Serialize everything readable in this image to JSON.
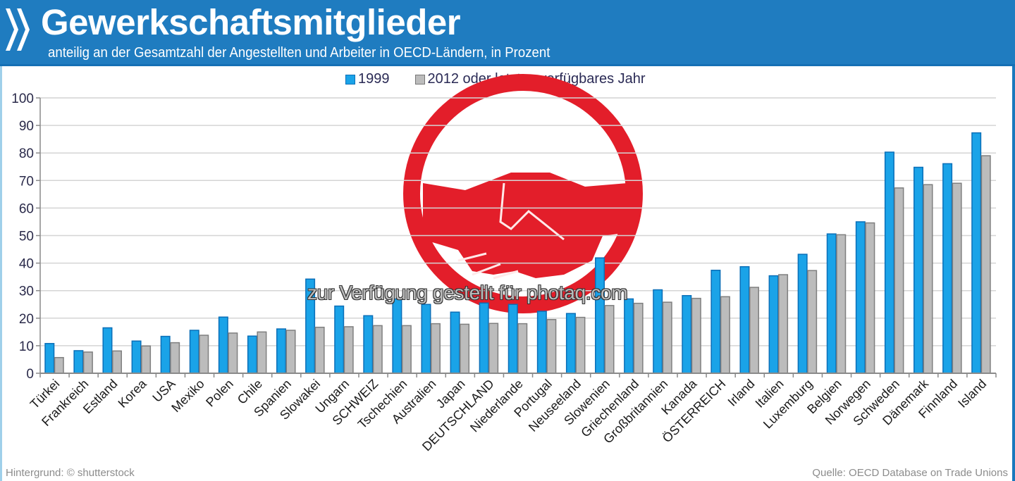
{
  "header": {
    "title": "Gewerkschaftsmitglieder",
    "subtitle": "anteilig an der Gesamtzahl der Angestellten und Arbeiter in OECD-Ländern, in Prozent",
    "logo_icon": "oecd-chevrons-icon"
  },
  "footer": {
    "left": "Hintergrund: © shutterstock",
    "right": "Quelle: OECD  Database on Trade Unions"
  },
  "watermark": {
    "text": "zur Verfügung gestellt für photaq.com",
    "icon": "handshake-icon"
  },
  "colors": {
    "header_bg": "#1f7cc0",
    "series_1999": "#1aa3e8",
    "series_2012": "#bcbcbc",
    "handshake": "#e31e2a"
  },
  "chart_data": {
    "type": "bar",
    "title": "Gewerkschaftsmitglieder",
    "subtitle": "anteilig an der Gesamtzahl der Angestellten und Arbeiter in OECD-Ländern, in Prozent",
    "xlabel": "",
    "ylabel": "",
    "ylim": [
      0,
      100
    ],
    "yticks": [
      0,
      10,
      20,
      30,
      40,
      50,
      60,
      70,
      80,
      90,
      100
    ],
    "grid": true,
    "legend_position": "top-center",
    "categories": [
      "Türkei",
      "Frankreich",
      "Estland",
      "Korea",
      "USA",
      "Mexiko",
      "Polen",
      "Chile",
      "Spanien",
      "Slowakei",
      "Ungarn",
      "SCHWEIZ",
      "Tschechien",
      "Australien",
      "Japan",
      "DEUTSCHLAND",
      "Niederlande",
      "Portugal",
      "Neuseeland",
      "Slowenien",
      "Griechenland",
      "Großbritannien",
      "Kanada",
      "ÖSTERREICH",
      "Irland",
      "Italien",
      "Luxemburg",
      "Belgien",
      "Norwegen",
      "Schweden",
      "Dänemark",
      "Finnland",
      "Island"
    ],
    "series": [
      {
        "name": "1999",
        "values": [
          10.8,
          8.2,
          16.5,
          11.7,
          13.4,
          15.6,
          20.4,
          13.5,
          16.1,
          34.2,
          24.4,
          20.9,
          27.0,
          25.0,
          22.2,
          25.5,
          25.0,
          22.5,
          21.7,
          41.9,
          27.0,
          30.3,
          28.2,
          37.4,
          38.7,
          35.4,
          43.2,
          50.6,
          55.0,
          80.3,
          74.8,
          76.1,
          87.3
        ]
      },
      {
        "name": "2012 oder letztes verfügbares Jahr",
        "values": [
          5.7,
          7.7,
          8.1,
          9.9,
          11.1,
          13.8,
          14.6,
          15.0,
          15.6,
          16.7,
          16.9,
          17.3,
          17.3,
          18.0,
          17.8,
          18.1,
          18.0,
          19.5,
          20.3,
          24.6,
          25.4,
          25.8,
          27.2,
          27.8,
          31.2,
          35.8,
          37.3,
          50.3,
          54.6,
          67.3,
          68.5,
          69.0,
          79.0
        ]
      }
    ]
  }
}
